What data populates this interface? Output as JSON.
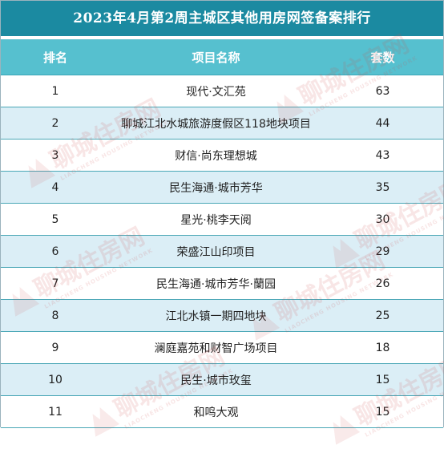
{
  "title": "2023年4月第2周主城区其他用房网签备案排行",
  "headers": {
    "rank": "排名",
    "name": "项目名称",
    "count": "套数"
  },
  "rows": [
    {
      "rank": "1",
      "name": "现代·文汇苑",
      "count": "63"
    },
    {
      "rank": "2",
      "name": "聊城江北水城旅游度假区118地块项目",
      "count": "44"
    },
    {
      "rank": "3",
      "name": "财信·尚东理想城",
      "count": "43"
    },
    {
      "rank": "4",
      "name": "民生海通·城市芳华",
      "count": "35"
    },
    {
      "rank": "5",
      "name": "星光·桃李天阅",
      "count": "30"
    },
    {
      "rank": "6",
      "name": "荣盛江山印项目",
      "count": "29"
    },
    {
      "rank": "7",
      "name": "民生海通·城市芳华·蘭园",
      "count": "26"
    },
    {
      "rank": "8",
      "name": "江北水镇一期四地块",
      "count": "25"
    },
    {
      "rank": "9",
      "name": "澜庭嘉苑和财智广场项目",
      "count": "18"
    },
    {
      "rank": "10",
      "name": "民生·城市玫玺",
      "count": "15"
    },
    {
      "rank": "11",
      "name": "和鸣大观",
      "count": "15"
    }
  ],
  "watermark": {
    "text": "聊城住房网",
    "subtext": "LIAOCHENG HOUSING NETWORK"
  }
}
